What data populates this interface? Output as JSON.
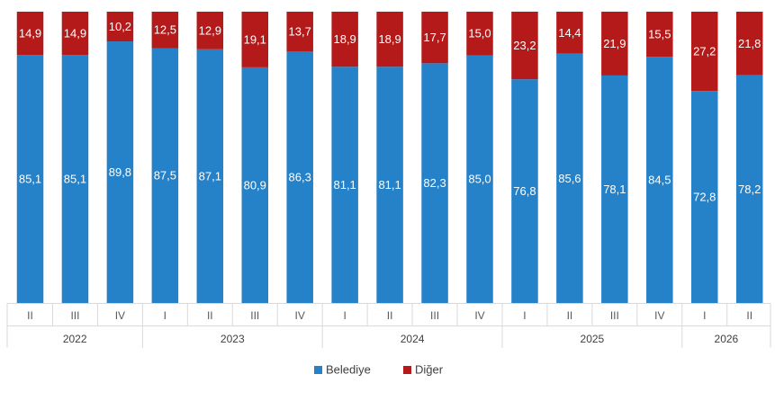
{
  "chart_data": {
    "type": "bar",
    "stacked": true,
    "percent": true,
    "groups": [
      {
        "year": "2022",
        "quarters": [
          "II",
          "III",
          "IV"
        ]
      },
      {
        "year": "2023",
        "quarters": [
          "I",
          "II",
          "III",
          "IV"
        ]
      },
      {
        "year": "2024",
        "quarters": [
          "I",
          "II",
          "III",
          "IV"
        ]
      },
      {
        "year": "2025",
        "quarters": [
          "I",
          "II",
          "III",
          "IV"
        ]
      },
      {
        "year": "2026",
        "quarters": [
          "I",
          "II"
        ]
      }
    ],
    "series": [
      {
        "name": "Belediye",
        "color": "#2581c8",
        "values": [
          85.1,
          85.1,
          89.8,
          87.5,
          87.1,
          80.9,
          86.3,
          81.1,
          81.1,
          82.3,
          85.0,
          76.8,
          85.6,
          78.1,
          84.5,
          72.8,
          78.2
        ],
        "labels": [
          "85,1",
          "85,1",
          "89,8",
          "87,5",
          "87,1",
          "80,9",
          "86,3",
          "81,1",
          "81,1",
          "82,3",
          "85,0",
          "76,8",
          "85,6",
          "78,1",
          "84,5",
          "72,8",
          "78,2"
        ]
      },
      {
        "name": "Diğer",
        "color": "#b41a1a",
        "values": [
          14.9,
          14.9,
          10.2,
          12.5,
          12.9,
          19.1,
          13.7,
          18.9,
          18.9,
          17.7,
          15.0,
          23.2,
          14.4,
          21.9,
          15.5,
          27.2,
          21.8
        ],
        "labels": [
          "14,9",
          "14,9",
          "10,2",
          "12,5",
          "12,9",
          "19,1",
          "13,7",
          "18,9",
          "18,9",
          "17,7",
          "15,0",
          "23,2",
          "14,4",
          "21,9",
          "15,5",
          "27,2",
          "21,8"
        ]
      }
    ],
    "ylim": [
      0,
      100
    ],
    "grid": false,
    "legend_position": "bottom"
  }
}
